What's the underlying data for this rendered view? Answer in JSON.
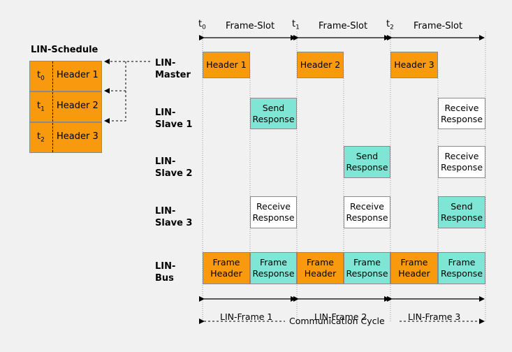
{
  "schedule": {
    "title": "LIN-Schedule",
    "rows": [
      {
        "t": "t",
        "sub": "0",
        "header": "Header 1"
      },
      {
        "t": "t",
        "sub": "1",
        "header": "Header 2"
      },
      {
        "t": "t",
        "sub": "2",
        "header": "Header 3"
      }
    ]
  },
  "nodes": {
    "master": [
      "LIN-",
      "Master"
    ],
    "slave1": [
      "LIN-",
      "Slave 1"
    ],
    "slave2": [
      "LIN-",
      "Slave 2"
    ],
    "slave3": [
      "LIN-",
      "Slave 3"
    ],
    "bus": [
      "LIN-",
      "Bus"
    ]
  },
  "timeline": {
    "times": [
      {
        "t": "t",
        "sub": "0"
      },
      {
        "t": "t",
        "sub": "1"
      },
      {
        "t": "t",
        "sub": "2"
      }
    ],
    "slot_label": "Frame-Slot"
  },
  "master_headers": [
    "Header 1",
    "Header 2",
    "Header 3"
  ],
  "responses": {
    "send": [
      "Send",
      "Response"
    ],
    "receive": [
      "Receive",
      "Response"
    ]
  },
  "bus": {
    "frame_header": [
      "Frame",
      "Header"
    ],
    "frame_response": [
      "Frame",
      "Response"
    ]
  },
  "frames": [
    "LIN-Frame 1",
    "LIN-Frame 2",
    "LIN-Frame 3"
  ],
  "cycle_label": "Communication Cycle",
  "colors": {
    "orange": "#f99a0e",
    "cyan": "#7fe6d6",
    "white": "#ffffff",
    "background": "#f1f1f1"
  }
}
